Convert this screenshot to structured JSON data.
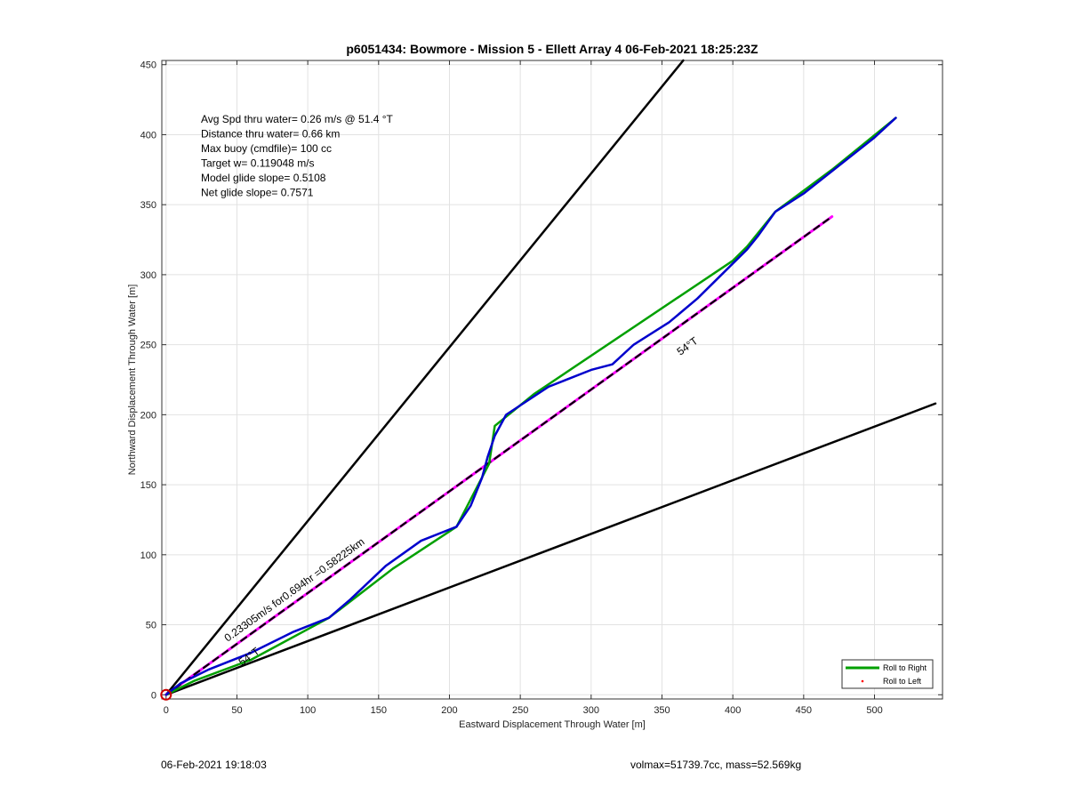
{
  "chart_data": {
    "type": "line",
    "title": "p6051434: Bowmore - Mission 5 - Ellett Array 4 06-Feb-2021 18:25:23Z",
    "xlabel": "Eastward Displacement Through Water [m]",
    "ylabel": "Northward Displacement Through Water [m]",
    "xlim": [
      -3,
      548
    ],
    "ylim": [
      -3,
      453
    ],
    "xticks": [
      0,
      50,
      100,
      150,
      200,
      250,
      300,
      350,
      400,
      450,
      500
    ],
    "yticks": [
      0,
      50,
      100,
      150,
      200,
      250,
      300,
      350,
      400,
      450
    ],
    "grid": true,
    "legend_position": "bottom-right",
    "legend": [
      {
        "label": "Roll to Right",
        "color": "#00a000",
        "style": "line"
      },
      {
        "label": "Roll to Left",
        "color": "#ff0000",
        "style": "dot"
      }
    ],
    "info_lines": [
      "Avg Spd thru water=  0.26 m/s @  51.4 °T",
      "Distance thru water=  0.66 km",
      "Max buoy (cmdfile)= 100 cc",
      "Target w= 0.119048 m/s",
      "Model glide slope= 0.5108",
      "Net glide slope= 0.7571"
    ],
    "annotations": {
      "speed_line_label": "0.23305m/s for0.694hr =0.58225km",
      "heading_label_near": "54°T",
      "heading_label_far": "54°T"
    },
    "series": [
      {
        "name": "Roll to Right",
        "color": "#00a000",
        "x": [
          0,
          20,
          60,
          115,
          160,
          205,
          228,
          232,
          260,
          400,
          410,
          430,
          470,
          515
        ],
        "y": [
          0,
          10,
          25,
          55,
          90,
          120,
          165,
          192,
          215,
          310,
          320,
          345,
          375,
          412
        ]
      },
      {
        "name": "blue-track",
        "color": "#0000cc",
        "x": [
          0,
          10,
          30,
          60,
          90,
          115,
          130,
          155,
          180,
          205,
          215,
          223,
          227,
          232,
          240,
          270,
          300,
          315,
          330,
          355,
          375,
          395,
          410,
          418,
          430,
          450,
          475,
          500,
          515
        ],
        "y": [
          0,
          8,
          18,
          30,
          45,
          55,
          68,
          92,
          110,
          120,
          135,
          155,
          170,
          185,
          200,
          220,
          232,
          236,
          250,
          266,
          283,
          303,
          318,
          328,
          345,
          358,
          378,
          398,
          412
        ]
      },
      {
        "name": "54deg-heading",
        "color": "#000000",
        "x": [
          0,
          470
        ],
        "y": [
          0,
          341.5
        ]
      },
      {
        "name": "envelope-upper",
        "color": "#000000",
        "x": [
          0,
          365
        ],
        "y": [
          0,
          453
        ]
      },
      {
        "name": "envelope-lower",
        "color": "#000000",
        "x": [
          0,
          543
        ],
        "y": [
          0,
          208
        ]
      }
    ],
    "start_marker": {
      "x": 0,
      "y": 0,
      "color": "#cc0000"
    }
  },
  "footer": {
    "left": "06-Feb-2021 19:18:03",
    "right": "volmax=51739.7cc, mass=52.569kg"
  }
}
